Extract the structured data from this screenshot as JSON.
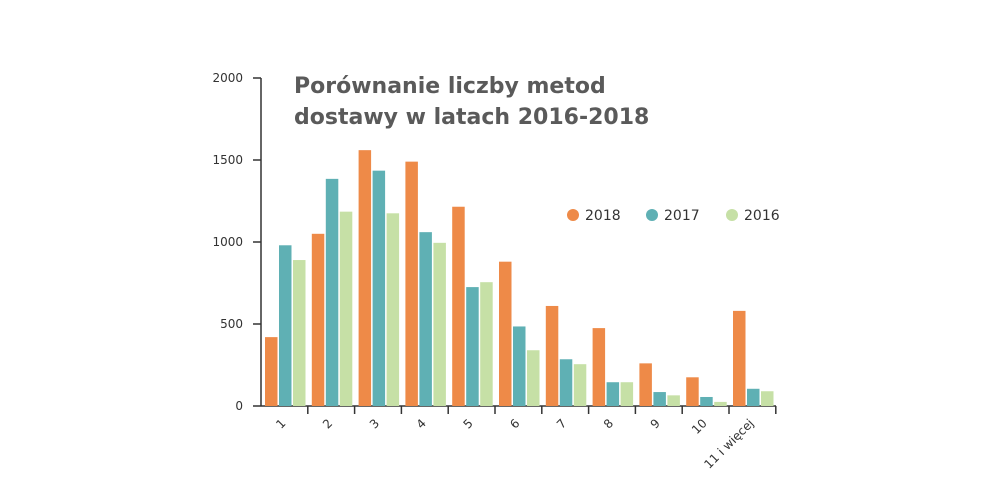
{
  "chart_data": {
    "type": "bar",
    "title_lines": [
      "Porównanie liczby metod",
      "dostawy w latach 2016-2018"
    ],
    "xlabel": "",
    "ylabel": "",
    "ylim": [
      0,
      2000
    ],
    "yticks": [
      "0",
      "500",
      "1000",
      "1500",
      "2000"
    ],
    "categories": [
      "1",
      "2",
      "3",
      "4",
      "5",
      "6",
      "7",
      "8",
      "9",
      "10",
      "11 i więcej"
    ],
    "series": [
      {
        "name": "2018",
        "color": "#ee8a48",
        "values": [
          420,
          1050,
          1560,
          1490,
          1215,
          880,
          610,
          475,
          260,
          175,
          580
        ]
      },
      {
        "name": "2017",
        "color": "#5fb0b4",
        "values": [
          980,
          1385,
          1435,
          1060,
          725,
          485,
          285,
          145,
          85,
          55,
          105
        ]
      },
      {
        "name": "2016",
        "color": "#c6e0a6",
        "values": [
          890,
          1185,
          1175,
          995,
          755,
          340,
          255,
          145,
          65,
          25,
          90
        ]
      }
    ],
    "grid": false,
    "legend_position": "right"
  }
}
